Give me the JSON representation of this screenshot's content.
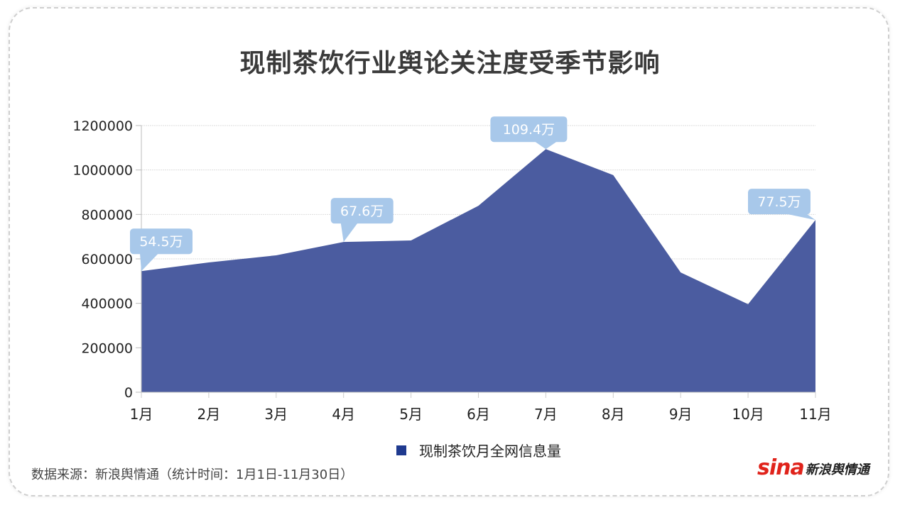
{
  "title": "现制茶饮行业舆论关注度受季节影响",
  "chart_data": {
    "type": "area",
    "title": "现制茶饮行业舆论关注度受季节影响",
    "xlabel": "",
    "ylabel": "",
    "categories": [
      "1月",
      "2月",
      "3月",
      "4月",
      "5月",
      "6月",
      "7月",
      "8月",
      "9月",
      "10月",
      "11月"
    ],
    "series": [
      {
        "name": "现制茶饮月全网信息量",
        "color": "#4b5ca0",
        "values": [
          545000,
          584000,
          616000,
          676000,
          683000,
          839000,
          1094000,
          977000,
          539000,
          396000,
          775000
        ]
      }
    ],
    "ylim": [
      0,
      1200000
    ],
    "yticks": [
      "0",
      "200000",
      "400000",
      "600000",
      "800000",
      "1000000",
      "1200000"
    ],
    "grid": true,
    "legend_position": "bottom",
    "annotations": [
      {
        "index": 0,
        "text": "54.5万"
      },
      {
        "index": 3,
        "text": "67.6万"
      },
      {
        "index": 6,
        "text": "109.4万"
      },
      {
        "index": 10,
        "text": "77.5万"
      }
    ]
  },
  "legend": {
    "label": "现制茶饮月全网信息量",
    "color": "#1f3a8f"
  },
  "footer": {
    "source": "数据来源：新浪舆情通（统计时间：1月1日-11月30日）",
    "logo_brand": "sina",
    "logo_text": "新浪舆情通"
  }
}
